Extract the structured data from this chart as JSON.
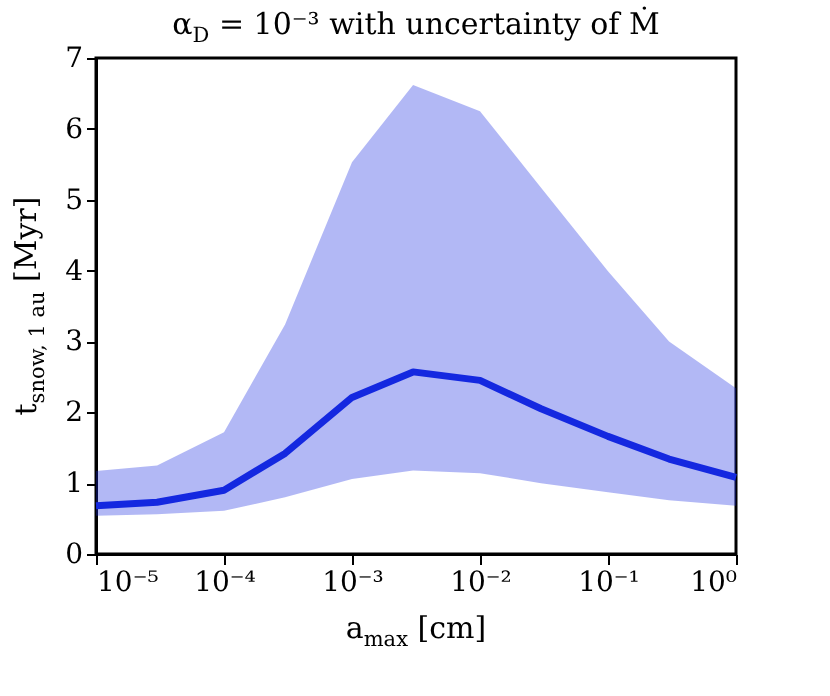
{
  "chart_data": {
    "type": "line",
    "title": "α$_{D}$ = 10⁻³ with uncertainty of Ṁ",
    "xlabel": "a$_{max}$ [cm]",
    "ylabel": "t$_{snow, 1 au}$ [Myr]",
    "x": [
      1e-05,
      3e-05,
      0.0001,
      0.0003,
      0.001,
      0.003,
      0.01,
      0.03,
      0.1,
      0.3,
      1
    ],
    "series": [
      {
        "color": "#1428e0",
        "values": [
          0.68,
          0.73,
          0.9,
          1.42,
          2.21,
          2.57,
          2.45,
          2.05,
          1.66,
          1.34,
          1.08
        ],
        "lower": [
          0.54,
          0.56,
          0.61,
          0.8,
          1.06,
          1.18,
          1.14,
          1.0,
          0.87,
          0.76,
          0.68
        ],
        "upper": [
          1.17,
          1.25,
          1.72,
          3.24,
          5.53,
          6.62,
          6.25,
          5.17,
          3.99,
          3.0,
          2.34
        ]
      }
    ],
    "log": "x",
    "xlim": [
      1e-05,
      1
    ],
    "ylim": [
      0,
      7
    ],
    "xticks": [
      {
        "value": 1e-05,
        "label": "10⁻⁵"
      },
      {
        "value": 0.0001,
        "label": "10⁻⁴"
      },
      {
        "value": 0.001,
        "label": "10⁻³"
      },
      {
        "value": 0.01,
        "label": "10⁻²"
      },
      {
        "value": 0.1,
        "label": "10⁻¹"
      },
      {
        "value": 1,
        "label": "10⁰"
      }
    ],
    "yticks": [
      0,
      1,
      2,
      3,
      4,
      5,
      6,
      7
    ],
    "grid": false,
    "line_style": "solid",
    "marker": "none"
  }
}
